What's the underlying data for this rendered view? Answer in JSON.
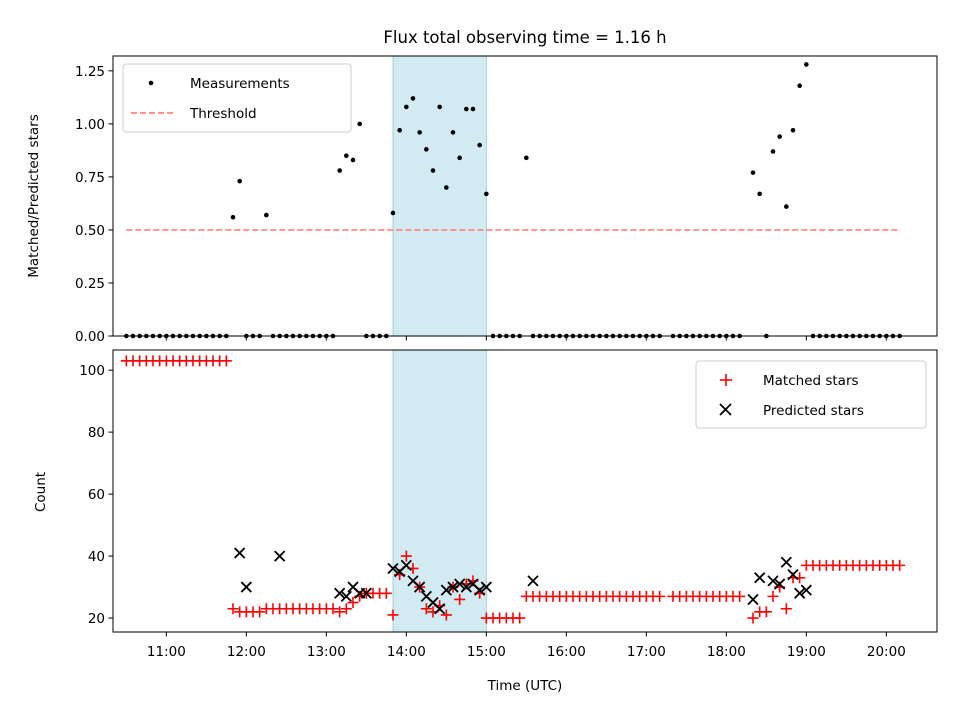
{
  "figure": {
    "title": "Flux total observing time = 1.16 h"
  },
  "colors": {
    "measurement": "#000000",
    "threshold": "#ff7f7f",
    "matched": "#ff0000",
    "predicted": "#000000",
    "shade": "#add8e6"
  },
  "chart_data": [
    {
      "type": "scatter",
      "ylabel": "Matched/Predicted stars",
      "ylim": [
        0.0,
        1.32
      ],
      "xlim": [
        "10:20",
        "20:38"
      ],
      "yticks": [
        0.0,
        0.25,
        0.5,
        0.75,
        1.0,
        1.25
      ],
      "ytick_labels": [
        "0.00",
        "0.25",
        "0.50",
        "0.75",
        "1.00",
        "1.25"
      ],
      "legend_position": "top-left",
      "shaded_interval": [
        "13:50",
        "15:00"
      ],
      "series": [
        {
          "name": "Measurements",
          "marker": "dot",
          "x": [
            "10:30",
            "10:35",
            "10:40",
            "10:45",
            "10:50",
            "10:55",
            "11:00",
            "11:05",
            "11:10",
            "11:15",
            "11:20",
            "11:25",
            "11:30",
            "11:35",
            "11:40",
            "11:45",
            "11:50",
            "11:55",
            "12:00",
            "12:05",
            "12:10",
            "12:15",
            "12:20",
            "12:25",
            "12:30",
            "12:35",
            "12:40",
            "12:45",
            "12:50",
            "12:55",
            "13:00",
            "13:05",
            "13:10",
            "13:15",
            "13:20",
            "13:25",
            "13:30",
            "13:35",
            "13:40",
            "13:45",
            "13:50",
            "13:55",
            "14:00",
            "14:05",
            "14:10",
            "14:15",
            "14:20",
            "14:25",
            "14:30",
            "14:35",
            "14:40",
            "14:45",
            "14:50",
            "14:55",
            "15:00",
            "15:05",
            "15:10",
            "15:15",
            "15:20",
            "15:25",
            "15:30",
            "15:35",
            "15:40",
            "15:45",
            "15:50",
            "15:55",
            "16:00",
            "16:05",
            "16:10",
            "16:15",
            "16:20",
            "16:25",
            "16:30",
            "16:35",
            "16:40",
            "16:45",
            "16:50",
            "16:55",
            "17:00",
            "17:05",
            "17:10",
            "17:20",
            "17:25",
            "17:30",
            "17:35",
            "17:40",
            "17:45",
            "17:50",
            "17:55",
            "18:00",
            "18:05",
            "18:10",
            "18:20",
            "18:25",
            "18:30",
            "18:35",
            "18:40",
            "18:45",
            "18:50",
            "18:55",
            "19:00",
            "19:05",
            "19:10",
            "19:15",
            "19:20",
            "19:25",
            "19:30",
            "19:35",
            "19:40",
            "19:45",
            "19:50",
            "19:55",
            "20:00",
            "20:05",
            "20:10"
          ],
          "y": [
            0,
            0,
            0,
            0,
            0,
            0,
            0,
            0,
            0,
            0,
            0,
            0,
            0,
            0,
            0,
            0,
            0.56,
            0.73,
            0,
            0,
            0,
            0.57,
            0,
            0,
            0,
            0,
            0,
            0,
            0,
            0,
            0,
            0,
            0.78,
            0.85,
            0.83,
            1.0,
            0,
            0,
            0,
            0,
            0.58,
            0.97,
            1.08,
            1.12,
            0.96,
            0.88,
            0.78,
            1.08,
            0.7,
            0.96,
            0.84,
            1.07,
            1.07,
            0.9,
            0.67,
            0,
            0,
            0,
            0,
            0,
            0.84,
            0,
            0,
            0,
            0,
            0,
            0,
            0,
            0,
            0,
            0,
            0,
            0,
            0,
            0,
            0,
            0,
            0,
            0,
            0,
            0,
            0,
            0,
            0,
            0,
            0,
            0,
            0,
            0,
            0,
            0,
            0,
            0.77,
            0.67,
            0,
            0.87,
            0.94,
            0.61,
            0.97,
            1.18,
            1.28,
            0,
            0,
            0,
            0,
            0,
            0,
            0,
            0,
            0,
            0,
            0,
            0,
            0,
            0
          ]
        },
        {
          "name": "Threshold",
          "style": "dashed",
          "x": [
            "10:30",
            "20:10"
          ],
          "y": [
            0.5,
            0.5
          ]
        }
      ]
    },
    {
      "type": "scatter",
      "xlabel": "Time (UTC)",
      "ylabel": "Count",
      "ylim": [
        15.5,
        106.5
      ],
      "xlim": [
        "10:20",
        "20:38"
      ],
      "yticks": [
        20,
        40,
        60,
        80,
        100
      ],
      "ytick_labels": [
        "20",
        "40",
        "60",
        "80",
        "100"
      ],
      "xticks": [
        "11:00",
        "12:00",
        "13:00",
        "14:00",
        "15:00",
        "16:00",
        "17:00",
        "18:00",
        "19:00",
        "20:00"
      ],
      "legend_position": "top-right",
      "shaded_interval": [
        "13:50",
        "15:00"
      ],
      "series": [
        {
          "name": "Matched stars",
          "marker": "plus",
          "x": [
            "10:30",
            "10:35",
            "10:40",
            "10:45",
            "10:50",
            "10:55",
            "11:00",
            "11:05",
            "11:10",
            "11:15",
            "11:20",
            "11:25",
            "11:30",
            "11:35",
            "11:40",
            "11:45",
            "11:50",
            "11:55",
            "12:00",
            "12:05",
            "12:10",
            "12:15",
            "12:20",
            "12:25",
            "12:30",
            "12:35",
            "12:40",
            "12:45",
            "12:50",
            "12:55",
            "13:00",
            "13:05",
            "13:10",
            "13:15",
            "13:20",
            "13:25",
            "13:30",
            "13:35",
            "13:40",
            "13:45",
            "13:50",
            "13:55",
            "14:00",
            "14:05",
            "14:10",
            "14:15",
            "14:20",
            "14:25",
            "14:30",
            "14:35",
            "14:40",
            "14:45",
            "14:50",
            "14:55",
            "15:00",
            "15:05",
            "15:10",
            "15:15",
            "15:20",
            "15:25",
            "15:30",
            "15:35",
            "15:40",
            "15:45",
            "15:50",
            "15:55",
            "16:00",
            "16:05",
            "16:10",
            "16:15",
            "16:20",
            "16:25",
            "16:30",
            "16:35",
            "16:40",
            "16:45",
            "16:50",
            "16:55",
            "17:00",
            "17:05",
            "17:10",
            "17:20",
            "17:25",
            "17:30",
            "17:35",
            "17:40",
            "17:45",
            "17:50",
            "17:55",
            "18:00",
            "18:05",
            "18:10",
            "18:20",
            "18:25",
            "18:30",
            "18:35",
            "18:40",
            "18:45",
            "18:50",
            "18:55",
            "19:00",
            "19:05",
            "19:10",
            "19:15",
            "19:20",
            "19:25",
            "19:30",
            "19:35",
            "19:40",
            "19:45",
            "19:50",
            "19:55",
            "20:00",
            "20:05",
            "20:10"
          ],
          "y": [
            103,
            103,
            103,
            103,
            103,
            103,
            103,
            103,
            103,
            103,
            103,
            103,
            103,
            103,
            103,
            103,
            23,
            22,
            22,
            22,
            22,
            23,
            23,
            23,
            23,
            23,
            23,
            23,
            23,
            23,
            23,
            23,
            22,
            23,
            25,
            27,
            28,
            28,
            28,
            28,
            21,
            34,
            40,
            36,
            30,
            23,
            22,
            24,
            21,
            30,
            26,
            31,
            32,
            28,
            20,
            20,
            20,
            20,
            20,
            20,
            27,
            27,
            27,
            27,
            27,
            27,
            27,
            27,
            27,
            27,
            27,
            27,
            27,
            27,
            27,
            27,
            27,
            27,
            27,
            27,
            27,
            27,
            27,
            27,
            27,
            27,
            27,
            27,
            27,
            27,
            27,
            27,
            20,
            22,
            22,
            27,
            30,
            23,
            33,
            33,
            37,
            37,
            37,
            37,
            37,
            37,
            37,
            37,
            37,
            37,
            37,
            37,
            37,
            37,
            37
          ]
        },
        {
          "name": "Predicted stars",
          "marker": "x",
          "x": [
            "11:55",
            "12:00",
            "12:25",
            "13:10",
            "13:15",
            "13:20",
            "13:25",
            "13:30",
            "13:50",
            "13:55",
            "14:00",
            "14:05",
            "14:10",
            "14:15",
            "14:20",
            "14:25",
            "14:30",
            "14:35",
            "14:40",
            "14:45",
            "14:50",
            "14:55",
            "15:00",
            "15:35",
            "18:20",
            "18:25",
            "18:35",
            "18:40",
            "18:45",
            "18:50",
            "18:55",
            "19:00"
          ],
          "y": [
            41,
            30,
            40,
            28,
            27,
            30,
            28,
            28,
            36,
            35,
            37,
            32,
            30,
            27,
            25,
            23,
            29,
            30,
            31,
            30,
            31,
            29,
            30,
            32,
            26,
            33,
            32,
            31,
            38,
            34,
            28,
            29
          ]
        }
      ]
    }
  ]
}
